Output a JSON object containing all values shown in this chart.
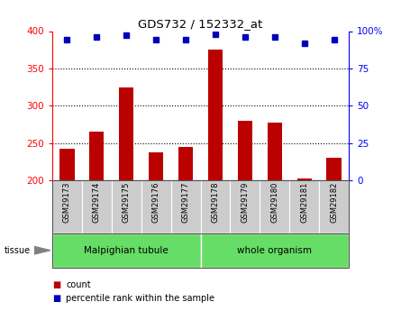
{
  "title": "GDS732 / 152332_at",
  "samples": [
    "GSM29173",
    "GSM29174",
    "GSM29175",
    "GSM29176",
    "GSM29177",
    "GSM29178",
    "GSM29179",
    "GSM29180",
    "GSM29181",
    "GSM29182"
  ],
  "counts": [
    242,
    265,
    325,
    237,
    245,
    375,
    280,
    277,
    203,
    230
  ],
  "percentiles": [
    94,
    96,
    97,
    94,
    94,
    98,
    96,
    96,
    92,
    94
  ],
  "ymin": 200,
  "ymax": 400,
  "yticks": [
    200,
    250,
    300,
    350,
    400
  ],
  "y2min": 0,
  "y2max": 100,
  "y2ticks": [
    0,
    25,
    50,
    75,
    100
  ],
  "groups": [
    {
      "label": "Malpighian tubule",
      "start": 0,
      "end": 5,
      "color": "#66dd66"
    },
    {
      "label": "whole organism",
      "start": 5,
      "end": 10,
      "color": "#66dd66"
    }
  ],
  "bar_color": "#bb0000",
  "dot_color": "#0000bb",
  "bar_width": 0.5,
  "label_area_color": "#cccccc",
  "tissue_label": "tissue",
  "legend_count_label": "count",
  "legend_pct_label": "percentile rank within the sample"
}
